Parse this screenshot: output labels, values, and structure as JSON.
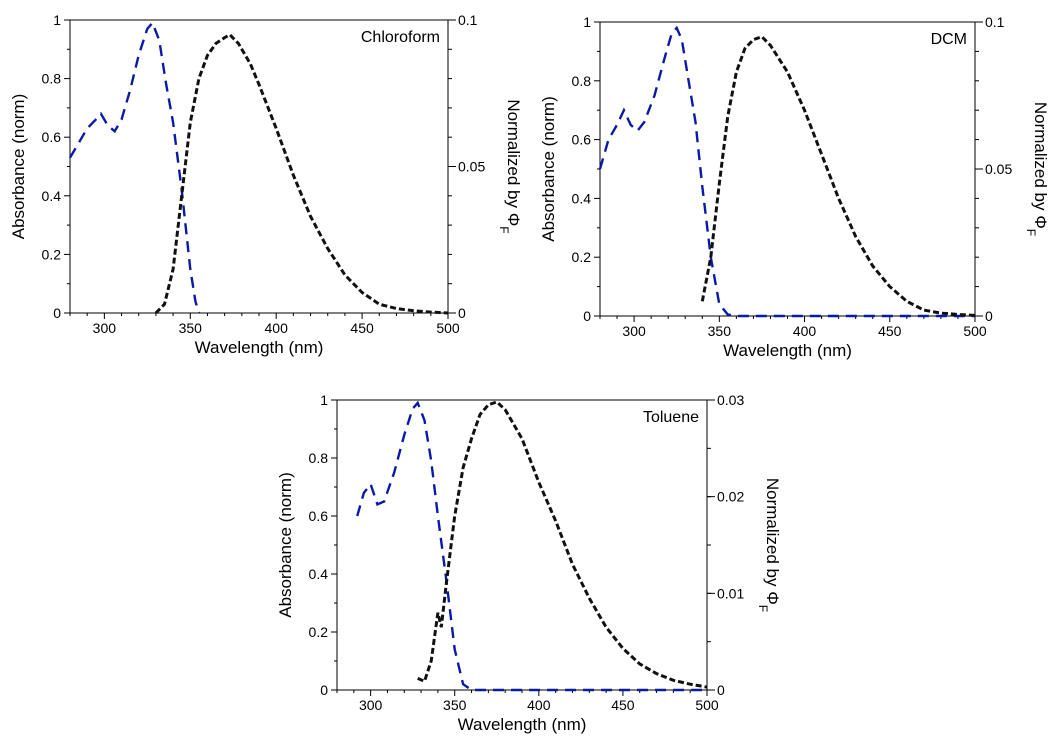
{
  "chart_data": [
    {
      "type": "line",
      "title": "Chloroform",
      "xlabel": "Wavelength (nm)",
      "ylabel": "Absorbance (norm)",
      "y2label_main": "Normalized by Φ",
      "y2label_sub": "F",
      "xlim": [
        280,
        500
      ],
      "ylim": [
        0,
        1
      ],
      "y2lim": [
        0,
        0.1
      ],
      "x_ticks": [
        "300",
        "350",
        "400",
        "450",
        "500"
      ],
      "y_ticks": [
        "0",
        "0.2",
        "0.4",
        "0.6",
        "0.8",
        "1"
      ],
      "y2_ticks": [
        "0",
        "0.05",
        "0.1"
      ],
      "series": [
        {
          "role": "absorbance",
          "color": "#0a1aa8",
          "axis": "left",
          "x": [
            280,
            285,
            290,
            295,
            298,
            302,
            306,
            310,
            315,
            320,
            325,
            328,
            332,
            336,
            340,
            345,
            350,
            353,
            355
          ],
          "y": [
            0.53,
            0.58,
            0.63,
            0.66,
            0.68,
            0.64,
            0.62,
            0.66,
            0.76,
            0.88,
            0.97,
            0.99,
            0.93,
            0.78,
            0.65,
            0.42,
            0.15,
            0.04,
            0.0
          ]
        },
        {
          "role": "fluorescence",
          "color": "#111111",
          "axis": "right",
          "x": [
            330,
            335,
            340,
            345,
            350,
            355,
            360,
            365,
            370,
            373,
            378,
            385,
            390,
            400,
            410,
            420,
            430,
            440,
            450,
            460,
            470,
            480,
            490,
            500
          ],
          "y": [
            0.0,
            0.003,
            0.015,
            0.04,
            0.065,
            0.08,
            0.088,
            0.092,
            0.094,
            0.095,
            0.092,
            0.085,
            0.078,
            0.063,
            0.047,
            0.033,
            0.022,
            0.013,
            0.007,
            0.003,
            0.0015,
            0.0008,
            0.0003,
            0.0
          ]
        }
      ]
    },
    {
      "type": "line",
      "title": "DCM",
      "xlabel": "Wavelength (nm)",
      "ylabel": "Absorbance (norm)",
      "y2label_main": "Normalized by Φ",
      "y2label_sub": "F",
      "xlim": [
        280,
        500
      ],
      "ylim": [
        0,
        1
      ],
      "y2lim": [
        0,
        0.1
      ],
      "x_ticks": [
        "300",
        "350",
        "400",
        "450",
        "500"
      ],
      "y_ticks": [
        "0",
        "0.2",
        "0.4",
        "0.6",
        "0.8",
        "1"
      ],
      "y2_ticks": [
        "0",
        "0.05",
        "0.1"
      ],
      "series": [
        {
          "role": "absorbance",
          "color": "#0a1aa8",
          "axis": "left",
          "x": [
            280,
            285,
            290,
            294,
            298,
            302,
            306,
            312,
            318,
            322,
            325,
            328,
            332,
            336,
            340,
            345,
            350,
            355,
            360,
            380,
            400,
            420,
            440,
            460,
            480,
            500
          ],
          "y": [
            0.5,
            0.6,
            0.65,
            0.7,
            0.65,
            0.63,
            0.66,
            0.75,
            0.88,
            0.96,
            0.98,
            0.94,
            0.8,
            0.66,
            0.44,
            0.2,
            0.04,
            0.005,
            0.0,
            0.0,
            0.0,
            0.0,
            0.0,
            0.0,
            0.0,
            0.0
          ]
        },
        {
          "role": "fluorescence",
          "color": "#111111",
          "axis": "right",
          "x": [
            340,
            345,
            350,
            355,
            360,
            365,
            370,
            375,
            380,
            390,
            400,
            410,
            420,
            430,
            440,
            450,
            460,
            470,
            480,
            490,
            500
          ],
          "y": [
            0.005,
            0.02,
            0.045,
            0.068,
            0.083,
            0.091,
            0.094,
            0.095,
            0.092,
            0.083,
            0.07,
            0.055,
            0.04,
            0.027,
            0.017,
            0.01,
            0.005,
            0.002,
            0.001,
            0.0005,
            0.0002
          ]
        }
      ]
    },
    {
      "type": "line",
      "title": "Toluene",
      "xlabel": "Wavelength (nm)",
      "ylabel": "Absorbance (norm)",
      "y2label_main": "Normalized by Φ",
      "y2label_sub": "F",
      "xlim": [
        280,
        500
      ],
      "ylim": [
        0,
        1
      ],
      "y2lim": [
        0,
        0.03
      ],
      "x_ticks": [
        "300",
        "350",
        "400",
        "450",
        "500"
      ],
      "y_ticks": [
        "0",
        "0.2",
        "0.4",
        "0.6",
        "0.8",
        "1"
      ],
      "y2_ticks": [
        "0",
        "0.01",
        "0.02",
        "0.03"
      ],
      "series": [
        {
          "role": "absorbance",
          "color": "#0a1aa8",
          "axis": "left",
          "x": [
            292,
            296,
            300,
            304,
            308,
            314,
            320,
            325,
            328,
            332,
            336,
            340,
            345,
            350,
            355,
            360,
            380,
            400,
            420,
            440,
            460,
            480,
            500
          ],
          "y": [
            0.6,
            0.68,
            0.71,
            0.64,
            0.65,
            0.75,
            0.88,
            0.97,
            0.99,
            0.93,
            0.79,
            0.6,
            0.38,
            0.14,
            0.02,
            0.0,
            0.0,
            0.0,
            0.0,
            0.0,
            0.0,
            0.0,
            0.0
          ]
        },
        {
          "role": "fluorescence",
          "color": "#111111",
          "axis": "right",
          "x": [
            328,
            332,
            336,
            340,
            342,
            345,
            350,
            355,
            360,
            365,
            370,
            375,
            380,
            385,
            390,
            400,
            410,
            420,
            430,
            440,
            450,
            460,
            470,
            480,
            490,
            500
          ],
          "y": [
            0.0012,
            0.0009,
            0.003,
            0.008,
            0.0065,
            0.011,
            0.018,
            0.023,
            0.026,
            0.0285,
            0.0295,
            0.0298,
            0.029,
            0.0275,
            0.026,
            0.0215,
            0.0175,
            0.013,
            0.0095,
            0.0065,
            0.0043,
            0.0027,
            0.0017,
            0.001,
            0.0006,
            0.0003
          ]
        }
      ]
    }
  ]
}
